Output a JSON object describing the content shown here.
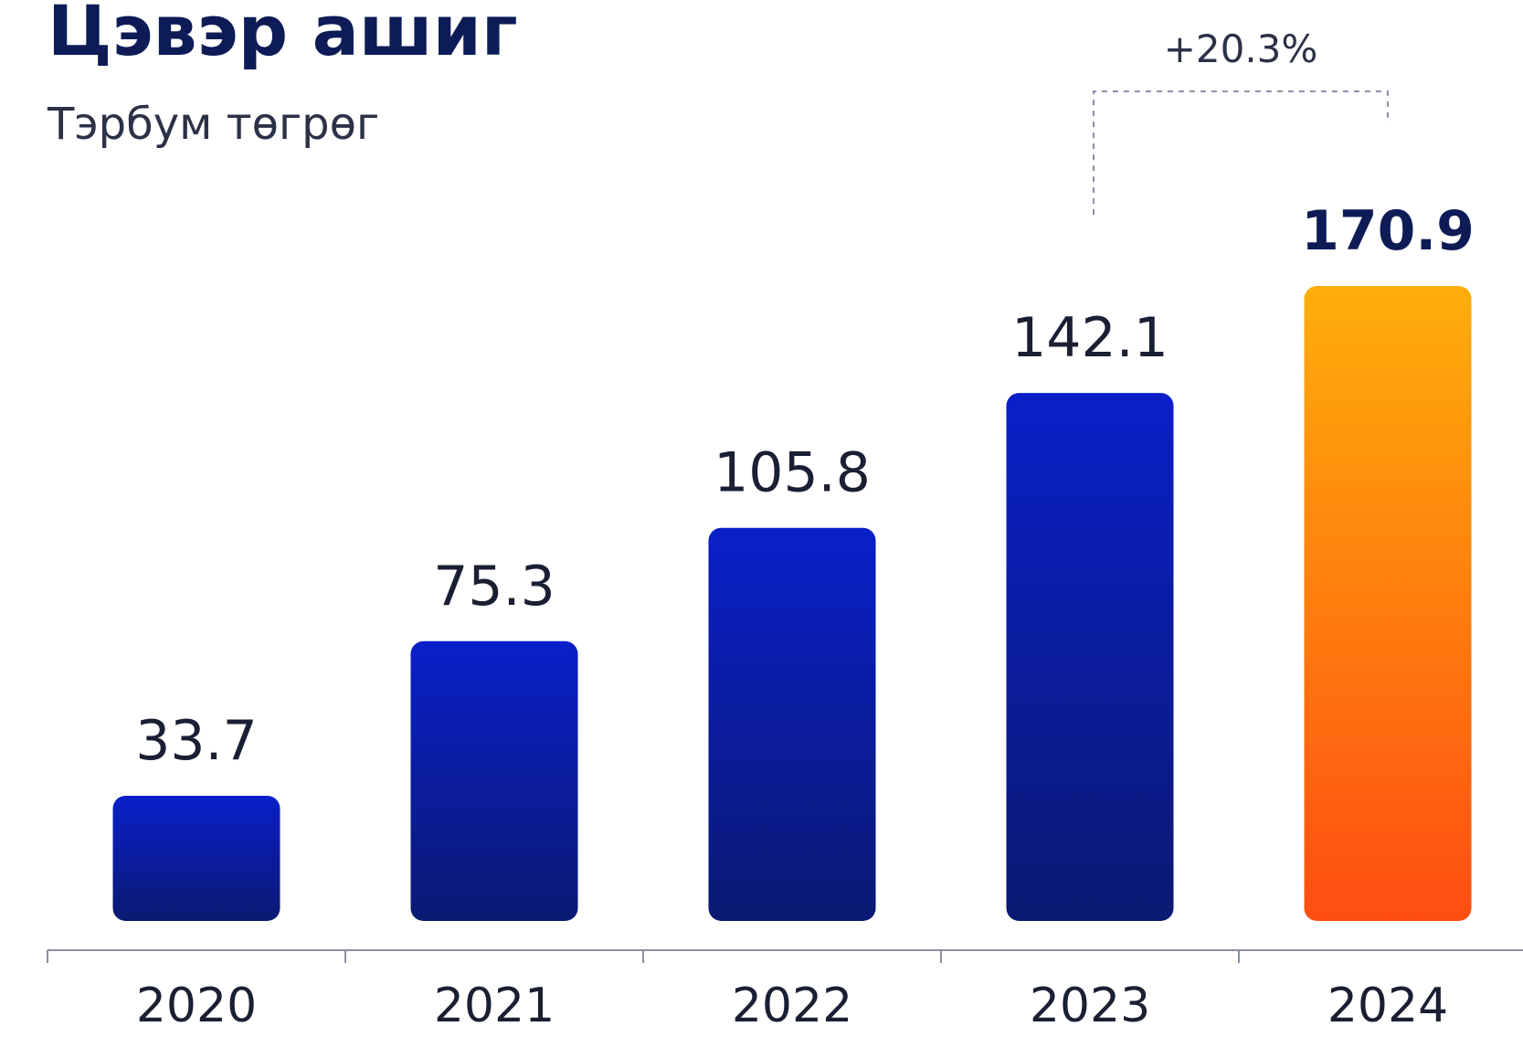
{
  "chart_data": {
    "type": "bar",
    "title": "Цэвэр ашиг",
    "subtitle": "Тэрбум төгрөг",
    "categories": [
      "2020",
      "2021",
      "2022",
      "2023",
      "2024"
    ],
    "values": [
      33.7,
      75.3,
      105.8,
      142.1,
      170.9
    ],
    "value_labels": [
      "33.7",
      "75.3",
      "105.8",
      "142.1",
      "170.9"
    ],
    "highlight_index": 4,
    "ylim": [
      0,
      185
    ],
    "grid": false,
    "legend": "none",
    "annotation": {
      "text": "+20.3%",
      "from_category": "2023",
      "to_category": "2024"
    },
    "colors": {
      "bar_top": "#0a1fc9",
      "bar_bottom": "#0a1a72",
      "highlight_top": "#ffae0b",
      "highlight_bottom": "#ff4d12",
      "title": "#0d1b57",
      "axis": "#8a8fa8"
    }
  }
}
